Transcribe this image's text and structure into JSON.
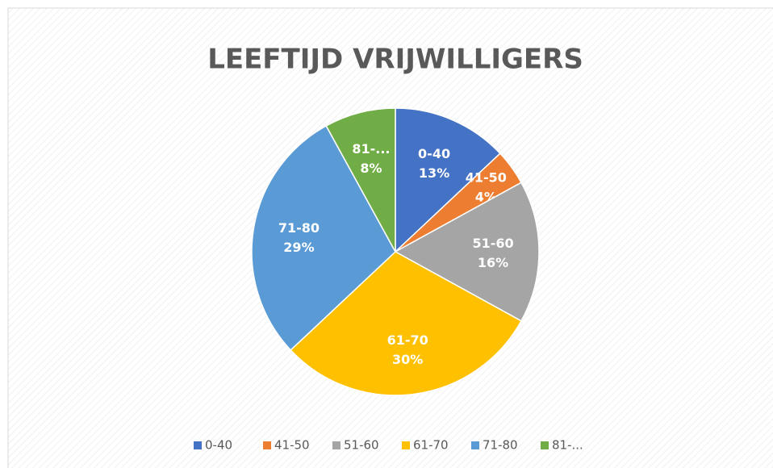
{
  "chart_data": {
    "type": "pie",
    "title": "LEEFTIJD VRIJWILLIGERS",
    "categories": [
      "0-40",
      "41-50",
      "51-60",
      "61-70",
      "71-80",
      "81-..."
    ],
    "values": [
      13,
      4,
      16,
      30,
      29,
      8
    ],
    "value_labels": [
      "13%",
      "4%",
      "16%",
      "30%",
      "29%",
      "8%"
    ],
    "colors": [
      "#4472c4",
      "#ed7d31",
      "#a5a5a5",
      "#ffc000",
      "#5b9bd5",
      "#70ad47"
    ],
    "legend": "bottom"
  }
}
